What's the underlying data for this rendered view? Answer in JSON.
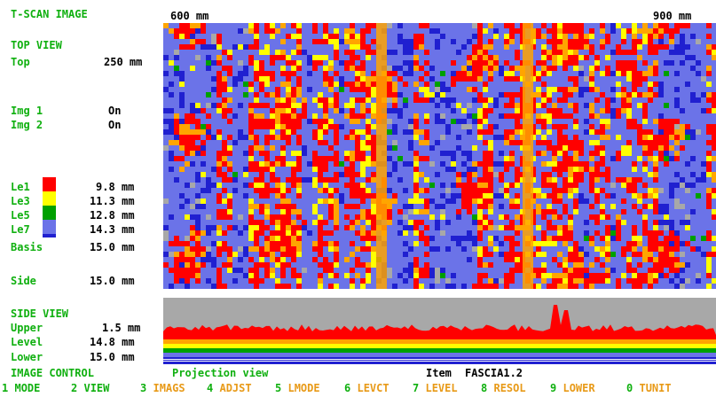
{
  "title": "T-SCAN IMAGE",
  "scale": {
    "left": "600 mm",
    "right": "900 mm"
  },
  "top_view": {
    "heading": "TOP VIEW",
    "top_label": "Top",
    "top_value": "250 mm"
  },
  "images": [
    {
      "label": "Img 1",
      "value": "On"
    },
    {
      "label": "Img 2",
      "value": "On"
    }
  ],
  "legend": [
    {
      "label": "Le1",
      "value": "9.8 mm",
      "color": "#ff0000"
    },
    {
      "label": "Le3",
      "value": "11.3 mm",
      "color": "#ffff00"
    },
    {
      "label": "Le5",
      "value": "12.8 mm",
      "color": "#00a000"
    },
    {
      "label": "Le7",
      "value": "14.3 mm",
      "color": "#6b73e8"
    },
    {
      "label": "Basis",
      "value": "15.0 mm",
      "color": "#2020d0"
    }
  ],
  "side": {
    "label": "Side",
    "value": "15.0 mm"
  },
  "side_view": {
    "heading": "SIDE VIEW",
    "rows": [
      {
        "label": "Upper",
        "value": "1.5 mm"
      },
      {
        "label": "Level",
        "value": "14.8 mm"
      },
      {
        "label": "Lower",
        "value": "15.0 mm"
      }
    ]
  },
  "status": {
    "control": "IMAGE CONTROL",
    "mode": "Projection view",
    "item_label": "Item",
    "item_value": "FASCIA1.2"
  },
  "menu": [
    {
      "num": "1",
      "label": "MODE"
    },
    {
      "num": "2",
      "label": "VIEW"
    },
    {
      "num": "3",
      "label": "IMAGS"
    },
    {
      "num": "4",
      "label": "ADJST"
    },
    {
      "num": "5",
      "label": "LMODE"
    },
    {
      "num": "6",
      "label": "LEVCT"
    },
    {
      "num": "7",
      "label": "LEVEL"
    },
    {
      "num": "8",
      "label": "RESOL"
    },
    {
      "num": "9",
      "label": "LOWER"
    },
    {
      "num": "0",
      "label": "TUNIT"
    }
  ]
}
